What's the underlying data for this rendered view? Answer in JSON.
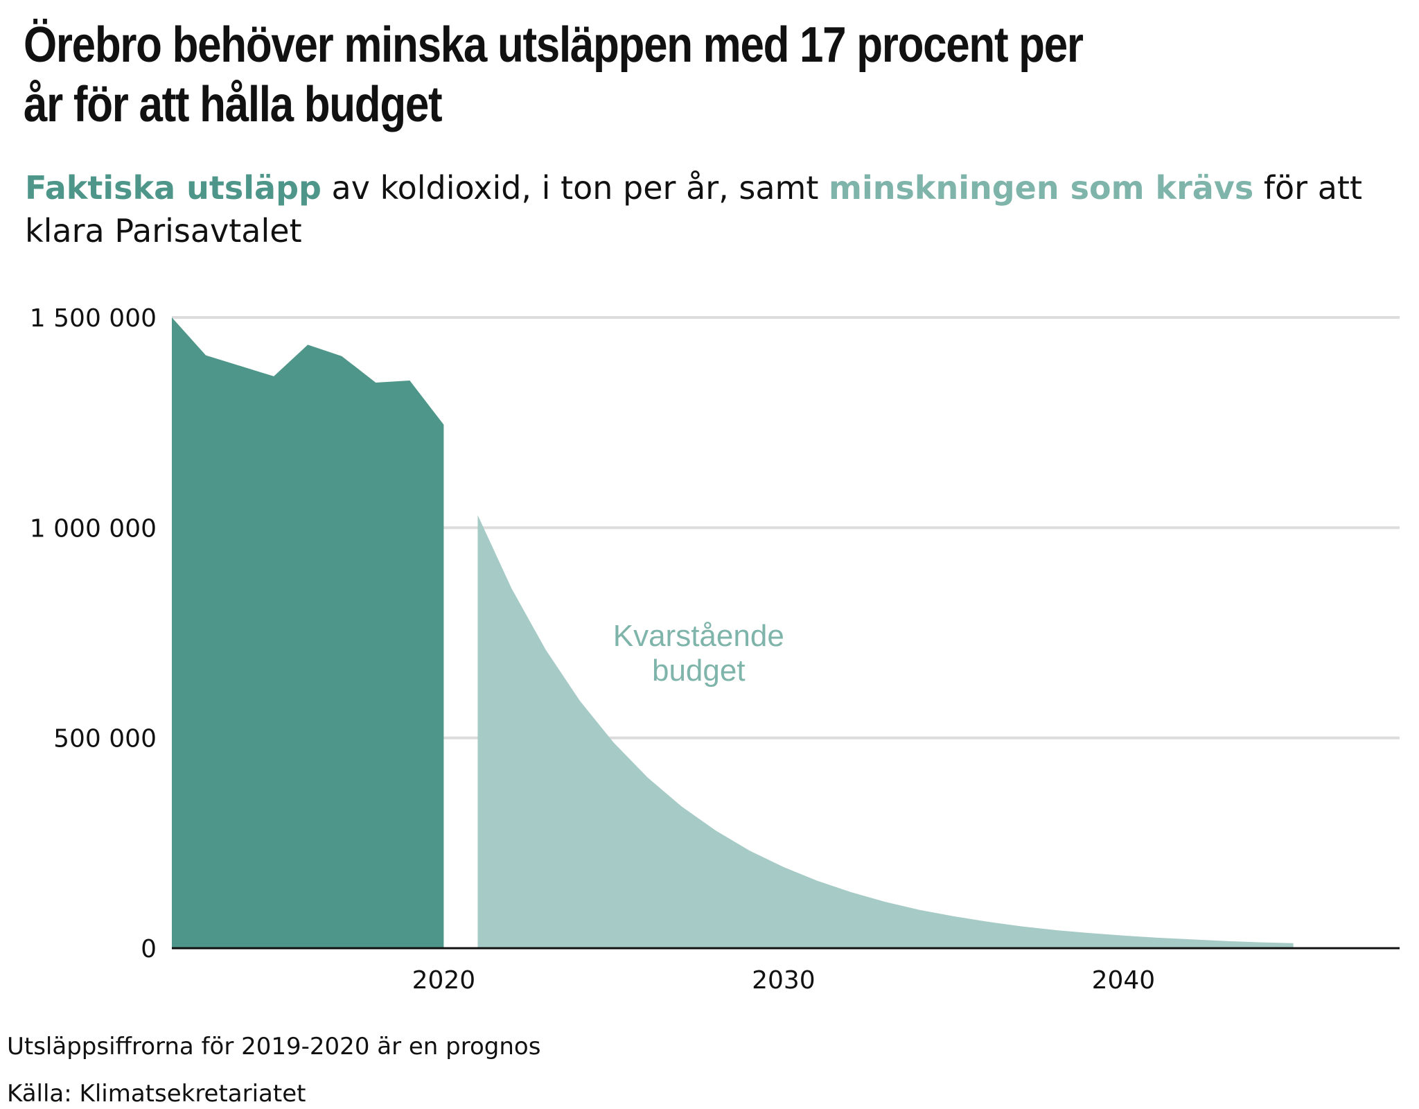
{
  "title_line1": "Örebro behöver minska utsläppen med 17 procent per",
  "title_line2": "år för att hålla budget",
  "subtitle": {
    "part1": "Faktiska utsläpp",
    "part2": " av koldioxid, i ton per år, samt ",
    "part3": "minskningen som krävs",
    "part4": " för att klara Parisavtalet"
  },
  "footnote": "Utsläppsiffrorna för 2019-2020 är en prognos",
  "source": "Källa: Klimatsekretariatet",
  "chart_data": {
    "type": "area",
    "title": "Örebro behöver minska utsläppen med 17 procent per år för att hålla budget",
    "ylim": [
      0,
      1500000
    ],
    "xlim": [
      2010.4,
      2046.7
    ],
    "y_ticks": [
      {
        "value": 0,
        "label": "0"
      },
      {
        "value": 500000,
        "label": "500 000"
      },
      {
        "value": 1000000,
        "label": "1 000 000"
      },
      {
        "value": 1500000,
        "label": "1 500 000"
      }
    ],
    "x_ticks": [
      {
        "value": 2020,
        "label": "2020"
      },
      {
        "value": 2030,
        "label": "2030"
      },
      {
        "value": 2040,
        "label": "2040"
      }
    ],
    "grid": true,
    "legend": "none",
    "series": [
      {
        "name": "Faktiska utsläpp",
        "color": "#4e9689",
        "x": [
          2012,
          2013,
          2014,
          2015,
          2016,
          2017,
          2018,
          2019,
          2020
        ],
        "values": [
          1500000,
          1410000,
          1385000,
          1360000,
          1435000,
          1408000,
          1345000,
          1350000,
          1245000
        ]
      },
      {
        "name": "minskningen som krävs",
        "color": "#a6cbc6",
        "x": [
          2021,
          2022,
          2023,
          2024,
          2025,
          2026,
          2027,
          2028,
          2029,
          2030,
          2031,
          2032,
          2033,
          2034,
          2035,
          2036,
          2037,
          2038,
          2039,
          2040,
          2041,
          2042,
          2043,
          2044,
          2045
        ],
        "values": [
          1030000,
          855000,
          710000,
          589000,
          489000,
          406000,
          337000,
          280000,
          232000,
          193000,
          160000,
          133000,
          110000,
          91000,
          76000,
          63000,
          52000,
          43000,
          36000,
          30000,
          25000,
          21000,
          17000,
          14000,
          12000
        ]
      }
    ],
    "annotations": [
      {
        "text_line1": "Kvarstående",
        "text_line2": "budget",
        "x": 2027.5,
        "y": 700000,
        "color": "#7fb4ab"
      }
    ]
  }
}
